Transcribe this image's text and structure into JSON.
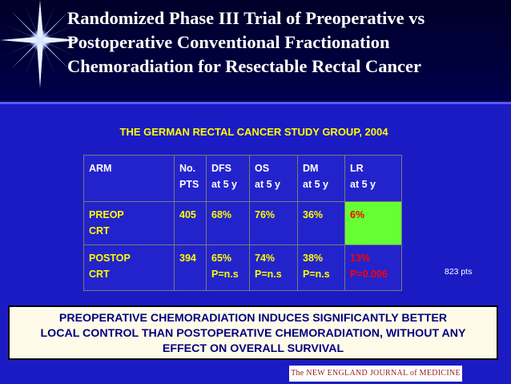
{
  "slide": {
    "title_lines": [
      "Randomized Phase III Trial of Preoperative vs",
      "Postoperative Conventional Fractionation",
      "Chemoradiation for Resectable Rectal Cancer"
    ],
    "study_group": "THE GERMAN RECTAL CANCER STUDY GROUP, 2004",
    "table": {
      "headers": [
        [
          "ARM",
          ""
        ],
        [
          "No.",
          "PTS"
        ],
        [
          "DFS",
          "at 5 y"
        ],
        [
          "OS",
          "at 5 y"
        ],
        [
          "DM",
          "at 5 y"
        ],
        [
          "LR",
          "at 5 y"
        ]
      ],
      "rows": [
        {
          "arm": [
            "PREOP",
            "CRT"
          ],
          "no": "405",
          "dfs": [
            "68%",
            ""
          ],
          "os": [
            "76%",
            ""
          ],
          "dm": [
            "36%",
            ""
          ],
          "lr": [
            "6%",
            ""
          ]
        },
        {
          "arm": [
            "POSTOP",
            "CRT"
          ],
          "no": "394",
          "dfs": [
            "65%",
            "P=n.s"
          ],
          "os": [
            "74%",
            "P=n.s"
          ],
          "dm": [
            "38%",
            "P=n.s"
          ],
          "lr": [
            "13%",
            "P=0.006"
          ]
        }
      ]
    },
    "side_note": "823 pts",
    "conclusion_lines": [
      "PREOPERATIVE CHEMORADIATION INDUCES SIGNIFICANTLY BETTER",
      "LOCAL CONTROL THAN POSTOPERATIVE CHEMORADIATION, WITHOUT ANY",
      "EFFECT ON OVERALL SURVIVAL"
    ],
    "journal_logo": "The NEW ENGLAND JOURNAL of MEDICINE"
  },
  "colors": {
    "background": "#1b1bc4",
    "header_background": "#000033",
    "title_text": "#ffffff",
    "data_text": "#ffff00",
    "highlight_cell": "#66ff33",
    "highlight_text": "#ff0000",
    "conclusion_background": "#fffbe8",
    "conclusion_text": "#000080"
  }
}
